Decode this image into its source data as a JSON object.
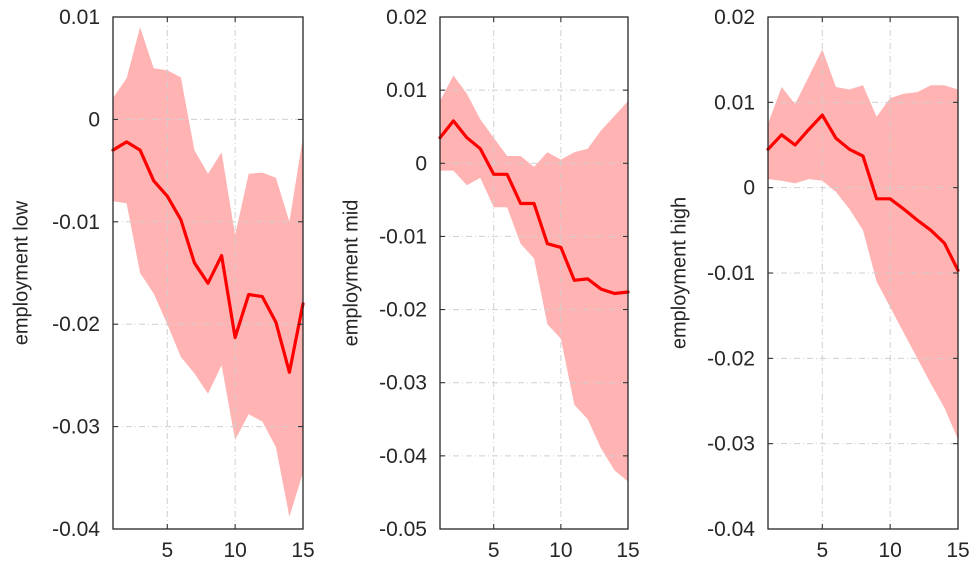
{
  "chart_data": [
    {
      "type": "line",
      "title": "",
      "xlabel": "",
      "ylabel": "employment low",
      "xlim": [
        1,
        15
      ],
      "ylim": [
        -0.04,
        0.01
      ],
      "xticks": [
        5,
        10,
        15
      ],
      "xtick_labels": [
        "5",
        "10",
        "15"
      ],
      "yticks": [
        -0.04,
        -0.03,
        -0.02,
        -0.01,
        0,
        0.01
      ],
      "ytick_labels": [
        "-0.04",
        "-0.03",
        "-0.02",
        "-0.01",
        "0",
        "0.01"
      ],
      "grid": true,
      "x": [
        1,
        2,
        3,
        4,
        5,
        6,
        7,
        8,
        9,
        10,
        11,
        12,
        13,
        14,
        15
      ],
      "series": [
        {
          "role": "estimate",
          "values": [
            -0.003,
            -0.0022,
            -0.003,
            -0.006,
            -0.0075,
            -0.0098,
            -0.014,
            -0.016,
            -0.0133,
            -0.0213,
            -0.0171,
            -0.0173,
            -0.0198,
            -0.0247,
            -0.018
          ]
        },
        {
          "role": "upper band",
          "values": [
            0.0021,
            0.004,
            0.009,
            0.005,
            0.0048,
            0.0041,
            -0.003,
            -0.0053,
            -0.0032,
            -0.0113,
            -0.0053,
            -0.0052,
            -0.0057,
            -0.01,
            -0.0017
          ]
        },
        {
          "role": "lower band",
          "values": [
            -0.008,
            -0.0082,
            -0.015,
            -0.017,
            -0.02,
            -0.0232,
            -0.0248,
            -0.0268,
            -0.024,
            -0.0313,
            -0.0288,
            -0.0295,
            -0.032,
            -0.0388,
            -0.0345
          ]
        }
      ],
      "colors": {
        "line": "#ff0000",
        "band": "#ffb3b3"
      }
    },
    {
      "type": "line",
      "title": "",
      "xlabel": "",
      "ylabel": "employment mid",
      "xlim": [
        1,
        15
      ],
      "ylim": [
        -0.05,
        0.02
      ],
      "xticks": [
        5,
        10,
        15
      ],
      "xtick_labels": [
        "5",
        "10",
        "15"
      ],
      "yticks": [
        -0.05,
        -0.04,
        -0.03,
        -0.02,
        -0.01,
        0,
        0.01,
        0.02
      ],
      "ytick_labels": [
        "-0.05",
        "-0.04",
        "-0.03",
        "-0.02",
        "-0.01",
        "0",
        "0.01",
        "0.02"
      ],
      "grid": true,
      "x": [
        1,
        2,
        3,
        4,
        5,
        6,
        7,
        8,
        9,
        10,
        11,
        12,
        13,
        14,
        15
      ],
      "series": [
        {
          "role": "estimate",
          "values": [
            0.0035,
            0.0058,
            0.0035,
            0.002,
            -0.0015,
            -0.0015,
            -0.0055,
            -0.0055,
            -0.011,
            -0.0115,
            -0.016,
            -0.0158,
            -0.0172,
            -0.0178,
            -0.0176
          ]
        },
        {
          "role": "upper band",
          "values": [
            0.0085,
            0.012,
            0.0095,
            0.006,
            0.0035,
            0.001,
            0.001,
            -0.0005,
            0.0015,
            0.0005,
            0.0015,
            0.002,
            0.0045,
            0.0065,
            0.0085
          ]
        },
        {
          "role": "lower band",
          "values": [
            -0.001,
            -0.001,
            -0.003,
            -0.002,
            -0.006,
            -0.006,
            -0.011,
            -0.013,
            -0.022,
            -0.024,
            -0.033,
            -0.035,
            -0.039,
            -0.042,
            -0.0435
          ]
        }
      ],
      "colors": {
        "line": "#ff0000",
        "band": "#ffb3b3"
      }
    },
    {
      "type": "line",
      "title": "",
      "xlabel": "",
      "ylabel": "employment high",
      "xlim": [
        1,
        15
      ],
      "ylim": [
        -0.04,
        0.02
      ],
      "xticks": [
        5,
        10,
        15
      ],
      "xtick_labels": [
        "5",
        "10",
        "15"
      ],
      "yticks": [
        -0.04,
        -0.03,
        -0.02,
        -0.01,
        0,
        0.01,
        0.02
      ],
      "ytick_labels": [
        "-0.04",
        "-0.03",
        "-0.02",
        "-0.01",
        "0",
        "0.01",
        "0.02"
      ],
      "grid": true,
      "x": [
        1,
        2,
        3,
        4,
        5,
        6,
        7,
        8,
        9,
        10,
        11,
        12,
        13,
        14,
        15
      ],
      "series": [
        {
          "role": "estimate",
          "values": [
            0.0045,
            0.0062,
            0.005,
            0.0068,
            0.0085,
            0.0058,
            0.0045,
            0.0037,
            -0.0013,
            -0.0013,
            -0.0025,
            -0.0038,
            -0.005,
            -0.0065,
            -0.0097
          ]
        },
        {
          "role": "upper band",
          "values": [
            0.0075,
            0.0118,
            0.0098,
            0.013,
            0.0162,
            0.0118,
            0.0115,
            0.012,
            0.0083,
            0.0105,
            0.011,
            0.0112,
            0.012,
            0.012,
            0.0115
          ]
        },
        {
          "role": "lower band",
          "values": [
            0.001,
            0.0008,
            0.0005,
            0.001,
            0.0008,
            -0.0005,
            -0.0025,
            -0.005,
            -0.011,
            -0.014,
            -0.017,
            -0.02,
            -0.023,
            -0.0258,
            -0.0295
          ]
        }
      ],
      "colors": {
        "line": "#ff0000",
        "band": "#ffb3b3"
      }
    }
  ]
}
